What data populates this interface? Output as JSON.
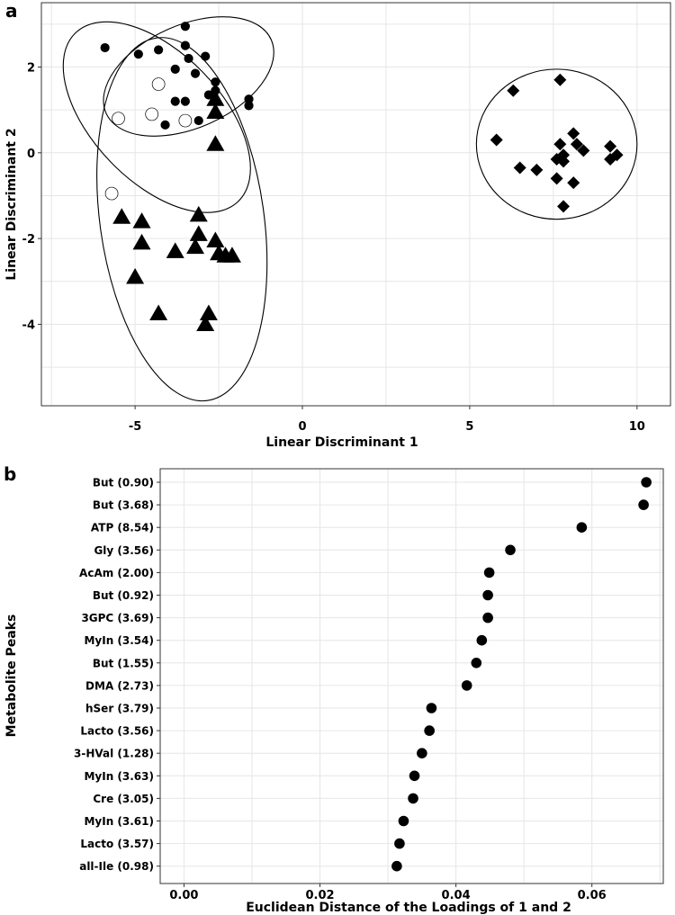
{
  "chart_data": [
    {
      "panel": "a",
      "type": "scatter",
      "title": "",
      "xlabel": "Linear Discriminant 1",
      "ylabel": "Linear Discriminant 2",
      "xlim": [
        -7.8,
        11.0
      ],
      "ylim": [
        -5.9,
        3.5
      ],
      "xticks": [
        -5,
        0,
        5,
        10
      ],
      "xtick_labels": [
        "-5",
        "0",
        "5",
        "10"
      ],
      "yticks": [
        2,
        0,
        -2,
        -4
      ],
      "ytick_labels": [
        "2",
        "0",
        "-2",
        "-4"
      ],
      "grid": true,
      "series": [
        {
          "name": "group-filled-circle",
          "marker": "circle",
          "filled": true,
          "points": [
            {
              "x": -3.5,
              "y": 2.95
            },
            {
              "x": -5.9,
              "y": 2.45
            },
            {
              "x": -4.9,
              "y": 2.3
            },
            {
              "x": -4.3,
              "y": 2.4
            },
            {
              "x": -3.5,
              "y": 2.5
            },
            {
              "x": -3.4,
              "y": 2.2
            },
            {
              "x": -2.9,
              "y": 2.25
            },
            {
              "x": -3.8,
              "y": 1.95
            },
            {
              "x": -3.2,
              "y": 1.85
            },
            {
              "x": -2.6,
              "y": 1.65
            },
            {
              "x": -2.6,
              "y": 1.45
            },
            {
              "x": -2.8,
              "y": 1.35
            },
            {
              "x": -1.6,
              "y": 1.25
            },
            {
              "x": -1.6,
              "y": 1.1
            },
            {
              "x": -3.8,
              "y": 1.2
            },
            {
              "x": -3.5,
              "y": 1.2
            },
            {
              "x": -3.1,
              "y": 0.75
            },
            {
              "x": -4.1,
              "y": 0.65
            }
          ]
        },
        {
          "name": "group-open-circle",
          "marker": "circle",
          "filled": false,
          "points": [
            {
              "x": -4.3,
              "y": 1.6
            },
            {
              "x": -4.5,
              "y": 0.9
            },
            {
              "x": -5.5,
              "y": 0.8
            },
            {
              "x": -3.5,
              "y": 0.75
            },
            {
              "x": -5.7,
              "y": -0.95
            }
          ]
        },
        {
          "name": "group-triangle",
          "marker": "triangle",
          "filled": true,
          "points": [
            {
              "x": -2.6,
              "y": 1.25
            },
            {
              "x": -2.6,
              "y": 0.95
            },
            {
              "x": -2.6,
              "y": 0.2
            },
            {
              "x": -3.1,
              "y": -1.45
            },
            {
              "x": -5.4,
              "y": -1.5
            },
            {
              "x": -4.8,
              "y": -1.6
            },
            {
              "x": -4.8,
              "y": -2.1
            },
            {
              "x": -3.1,
              "y": -1.9
            },
            {
              "x": -2.6,
              "y": -2.05
            },
            {
              "x": -3.2,
              "y": -2.2
            },
            {
              "x": -3.8,
              "y": -2.3
            },
            {
              "x": -2.5,
              "y": -2.35
            },
            {
              "x": -2.3,
              "y": -2.4
            },
            {
              "x": -2.1,
              "y": -2.4
            },
            {
              "x": -5.0,
              "y": -2.9
            },
            {
              "x": -4.3,
              "y": -3.75
            },
            {
              "x": -2.8,
              "y": -3.75
            },
            {
              "x": -2.9,
              "y": -4.0
            }
          ]
        },
        {
          "name": "group-diamond",
          "marker": "diamond",
          "filled": true,
          "points": [
            {
              "x": 6.3,
              "y": 1.45
            },
            {
              "x": 7.7,
              "y": 1.7
            },
            {
              "x": 5.8,
              "y": 0.3
            },
            {
              "x": 8.1,
              "y": 0.45
            },
            {
              "x": 8.2,
              "y": 0.2
            },
            {
              "x": 7.7,
              "y": 0.2
            },
            {
              "x": 8.4,
              "y": 0.05
            },
            {
              "x": 9.2,
              "y": 0.15
            },
            {
              "x": 7.8,
              "y": -0.05
            },
            {
              "x": 7.6,
              "y": -0.15
            },
            {
              "x": 7.8,
              "y": -0.2
            },
            {
              "x": 9.4,
              "y": -0.05
            },
            {
              "x": 9.2,
              "y": -0.15
            },
            {
              "x": 6.5,
              "y": -0.35
            },
            {
              "x": 7.0,
              "y": -0.4
            },
            {
              "x": 7.6,
              "y": -0.6
            },
            {
              "x": 8.1,
              "y": -0.7
            },
            {
              "x": 7.8,
              "y": -1.25
            }
          ]
        }
      ],
      "ellipses": [
        {
          "name": "ellipse-filled-circle",
          "cx": -3.4,
          "cy": 1.78,
          "rx": 2.7,
          "ry": 1.2,
          "angle_deg": 24
        },
        {
          "name": "ellipse-open-circle",
          "cx": -4.35,
          "cy": 0.83,
          "rx": 3.5,
          "ry": 1.5,
          "angle_deg": -46
        },
        {
          "name": "ellipse-triangle",
          "cx": -3.6,
          "cy": -1.55,
          "rx": 2.45,
          "ry": 4.27,
          "angle_deg": 8
        },
        {
          "name": "ellipse-diamond",
          "cx": 7.6,
          "cy": 0.2,
          "rx": 2.4,
          "ry": 1.75,
          "angle_deg": 0
        }
      ]
    },
    {
      "panel": "b",
      "type": "scatter",
      "title": "",
      "xlabel": "Euclidean Distance of the Loadings of 1 and 2",
      "ylabel": "Metabolite Peaks",
      "xlim": [
        -0.0035,
        0.0705
      ],
      "xticks": [
        0.0,
        0.02,
        0.04,
        0.06
      ],
      "xtick_labels": [
        "0.00",
        "0.02",
        "0.04",
        "0.06"
      ],
      "grid": true,
      "categories": [
        "But (0.90)",
        "But (3.68)",
        "ATP (8.54)",
        "Gly (3.56)",
        "AcAm (2.00)",
        "But (0.92)",
        "3GPC (3.69)",
        "MyIn (3.54)",
        "But (1.55)",
        "DMA (2.73)",
        "hSer (3.79)",
        "Lacto (3.56)",
        "3-HVal (1.28)",
        "MyIn (3.63)",
        "Cre (3.05)",
        "MyIn (3.61)",
        "Lacto (3.57)",
        "all-Ile (0.98)"
      ],
      "values": [
        0.068,
        0.0676,
        0.0585,
        0.048,
        0.0449,
        0.0447,
        0.0447,
        0.0438,
        0.043,
        0.0416,
        0.0364,
        0.0361,
        0.035,
        0.0339,
        0.0337,
        0.0323,
        0.0317,
        0.0313
      ]
    }
  ],
  "labels": {
    "panel_a": "a",
    "panel_b": "b"
  }
}
